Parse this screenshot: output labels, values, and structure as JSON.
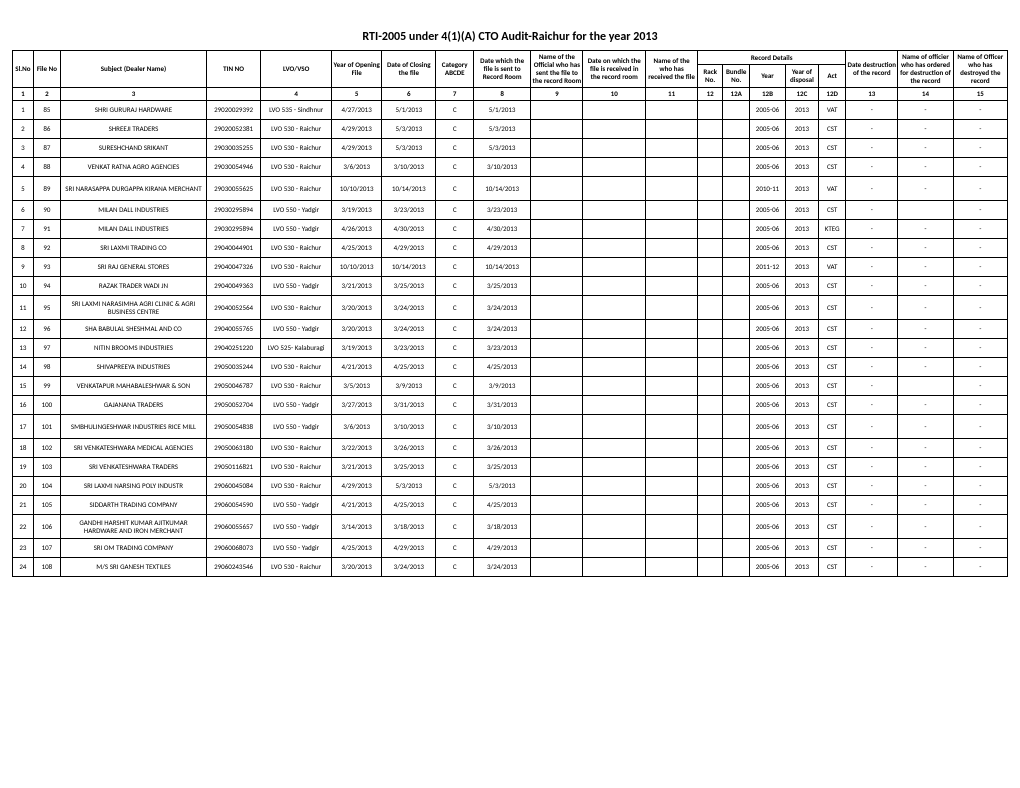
{
  "title": "RTI-2005 under 4(1)(A) CTO Audit-Raichur for the year 2013",
  "record_details_label": "Record Details",
  "headers": {
    "slno": "Sl.No",
    "fileno": "File No",
    "dealer": "Subject (Dealer Name)",
    "tin": "TIN NO",
    "lvo": "LVO/VSO",
    "year_open": "Year of Opening File",
    "close": "Date of Closing the file",
    "category": "Category ABCDE",
    "sent": "Date which the file is sent to Record Room",
    "official": "Name of the Official who has sent the file to the record Room",
    "received": "Date on which the file is received in the record room",
    "who_rec": "Name of the who has received the file",
    "rack": "Rack No.",
    "bundle": "Bundle No.",
    "year": "Year",
    "disposal": "Year of disposal",
    "act": "Act",
    "destr_date": "Date destruction of the record",
    "ordered": "Name of officier who has ordered for destruction of the record",
    "destroyed": "Name of Officer who has destroyed the record"
  },
  "col_numbers": [
    "1",
    "2",
    "3",
    "",
    "4",
    "5",
    "6",
    "7",
    "8",
    "9",
    "10",
    "11",
    "12",
    "12A",
    "12B",
    "12C",
    "12D",
    "13",
    "14",
    "15"
  ],
  "rows": [
    {
      "sl": "1",
      "file": "85",
      "dealer": "SHRI GURURAJ HARDWARE",
      "tin": "29020029392",
      "lvo": "LVO 535 - Sindhnur",
      "yopen": "4/27/2013",
      "close": "5/1/2013",
      "cat": "C",
      "sent": "5/1/2013",
      "year": "2005-06",
      "disp": "2013",
      "act": "VAT",
      "d": "-",
      "o": "-",
      "de": "-"
    },
    {
      "sl": "2",
      "file": "86",
      "dealer": "SHREEJI TRADERS",
      "tin": "29020052381",
      "lvo": "LVO 530 - Raichur",
      "yopen": "4/29/2013",
      "close": "5/3/2013",
      "cat": "C",
      "sent": "5/3/2013",
      "year": "2005-06",
      "disp": "2013",
      "act": "CST",
      "d": "-",
      "o": "-",
      "de": "-"
    },
    {
      "sl": "3",
      "file": "87",
      "dealer": "SURESHCHAND SRIKANT",
      "tin": "29030035255",
      "lvo": "LVO 530 - Raichur",
      "yopen": "4/29/2013",
      "close": "5/3/2013",
      "cat": "C",
      "sent": "5/3/2013",
      "year": "2005-06",
      "disp": "2013",
      "act": "CST",
      "d": "-",
      "o": "-",
      "de": "-"
    },
    {
      "sl": "4",
      "file": "88",
      "dealer": "VENKAT RATNA AGRO AGENCIES",
      "tin": "29030054946",
      "lvo": "LVO 530 - Raichur",
      "yopen": "3/6/2013",
      "close": "3/10/2013",
      "cat": "C",
      "sent": "3/10/2013",
      "year": "2005-06",
      "disp": "2013",
      "act": "CST",
      "d": "-",
      "o": "-",
      "de": "-"
    },
    {
      "sl": "5",
      "file": "89",
      "dealer": "SRI NARASAPPA DURGAPPA KIRANA MERCHANT",
      "tin": "29030055625",
      "lvo": "LVO 530 - Raichur",
      "yopen": "10/10/2013",
      "close": "10/14/2013",
      "cat": "C",
      "sent": "10/14/2013",
      "year": "2010-11",
      "disp": "2013",
      "act": "VAT",
      "d": "-",
      "o": "-",
      "de": "-",
      "tall": true
    },
    {
      "sl": "6",
      "file": "90",
      "dealer": "MILAN DALL INDUSTRIES",
      "tin": "29030295894",
      "lvo": "LVO 550 - Yadgir",
      "yopen": "3/19/2013",
      "close": "3/23/2013",
      "cat": "C",
      "sent": "3/23/2013",
      "year": "2005-06",
      "disp": "2013",
      "act": "CST",
      "d": "-",
      "o": "",
      "de": "-"
    },
    {
      "sl": "7",
      "file": "91",
      "dealer": "MILAN DALL INDUSTRIES",
      "tin": "29030295894",
      "lvo": "LVO 550 - Yadgir",
      "yopen": "4/26/2013",
      "close": "4/30/2013",
      "cat": "C",
      "sent": "4/30/2013",
      "year": "2005-06",
      "disp": "2013",
      "act": "KTEG",
      "d": "-",
      "o": "-",
      "de": "-"
    },
    {
      "sl": "8",
      "file": "92",
      "dealer": "SRI LAXMI TRADING CO",
      "tin": "29040044901",
      "lvo": "LVO 530 - Raichur",
      "yopen": "4/25/2013",
      "close": "4/29/2013",
      "cat": "C",
      "sent": "4/29/2013",
      "year": "2005-06",
      "disp": "2013",
      "act": "CST",
      "d": "-",
      "o": "-",
      "de": "-"
    },
    {
      "sl": "9",
      "file": "93",
      "dealer": "SRI RAJ GENERAL STORES",
      "tin": "29040047326",
      "lvo": "LVO 530 - Raichur",
      "yopen": "10/10/2013",
      "close": "10/14/2013",
      "cat": "C",
      "sent": "10/14/2013",
      "year": "2011-12",
      "disp": "2013",
      "act": "VAT",
      "d": "-",
      "o": "-",
      "de": "-"
    },
    {
      "sl": "10",
      "file": "94",
      "dealer": "RAZAK TRADER WADI JN",
      "tin": "29040049363",
      "lvo": "LVO 550 - Yadgir",
      "yopen": "3/21/2013",
      "close": "3/25/2013",
      "cat": "C",
      "sent": "3/25/2013",
      "year": "2005-06",
      "disp": "2013",
      "act": "CST",
      "d": "-",
      "o": "-",
      "de": "-"
    },
    {
      "sl": "11",
      "file": "95",
      "dealer": "SRI LAXMI NARASIMHA AGRI CLINIC & AGRI BUSINESS CENTRE",
      "tin": "29040052564",
      "lvo": "LVO 530 - Raichur",
      "yopen": "3/20/2013",
      "close": "3/24/2013",
      "cat": "C",
      "sent": "3/24/2013",
      "year": "2005-06",
      "disp": "2013",
      "act": "CST",
      "d": "-",
      "o": "-",
      "de": "-",
      "tall": true
    },
    {
      "sl": "12",
      "file": "96",
      "dealer": "SHA BABULAL SHESHMAL AND CO",
      "tin": "29040055765",
      "lvo": "LVO 550 - Yadgir",
      "yopen": "3/20/2013",
      "close": "3/24/2013",
      "cat": "C",
      "sent": "3/24/2013",
      "year": "2005-06",
      "disp": "2013",
      "act": "CST",
      "d": "-",
      "o": "-",
      "de": "-"
    },
    {
      "sl": "13",
      "file": "97",
      "dealer": "NITIN BROOMS INDUSTRIES",
      "tin": "29040251220",
      "lvo": "LVO 525- Kalaburagi",
      "yopen": "3/19/2013",
      "close": "3/23/2013",
      "cat": "C",
      "sent": "3/23/2013",
      "year": "2005-06",
      "disp": "2013",
      "act": "CST",
      "d": "-",
      "o": "-",
      "de": "-"
    },
    {
      "sl": "14",
      "file": "98",
      "dealer": "SHIVAPREEYA INDUSTRIES",
      "tin": "29050035244",
      "lvo": "LVO 530 - Raichur",
      "yopen": "4/21/2013",
      "close": "4/25/2013",
      "cat": "C",
      "sent": "4/25/2013",
      "year": "2005-06",
      "disp": "2013",
      "act": "CST",
      "d": "-",
      "o": "-",
      "de": "-"
    },
    {
      "sl": "15",
      "file": "99",
      "dealer": "VENKATAPUR MAHABALESHWAR & SON",
      "tin": "29050046787",
      "lvo": "LVO 530 - Raichur",
      "yopen": "3/5/2013",
      "close": "3/9/2013",
      "cat": "C",
      "sent": "3/9/2013",
      "year": "2005-06",
      "disp": "2013",
      "act": "CST",
      "d": "-",
      "o": "",
      "de": "-"
    },
    {
      "sl": "16",
      "file": "100",
      "dealer": "GAJANANA TRADERS",
      "tin": "29050052704",
      "lvo": "LVO 550 - Yadgir",
      "yopen": "3/27/2013",
      "close": "3/31/2013",
      "cat": "C",
      "sent": "3/31/2013",
      "year": "2005-06",
      "disp": "2013",
      "act": "CST",
      "d": "-",
      "o": "-",
      "de": "-"
    },
    {
      "sl": "17",
      "file": "101",
      "dealer": "SMBHULINGESHWAR INDUSTRIES RICE MILL",
      "tin": "29050054838",
      "lvo": "LVO 550 - Yadgir",
      "yopen": "3/6/2013",
      "close": "3/10/2013",
      "cat": "C",
      "sent": "3/10/2013",
      "year": "2005-06",
      "disp": "2013",
      "act": "CST",
      "d": "-",
      "o": "-",
      "de": "-",
      "tall": true
    },
    {
      "sl": "18",
      "file": "102",
      "dealer": "SRI VENKATESHWARA MEDICAL AGENCIES",
      "tin": "29050063180",
      "lvo": "LVO 530 - Raichur",
      "yopen": "3/22/2013",
      "close": "3/26/2013",
      "cat": "C",
      "sent": "3/26/2013",
      "year": "2005-06",
      "disp": "2013",
      "act": "CST",
      "d": "-",
      "o": "-",
      "de": "-"
    },
    {
      "sl": "19",
      "file": "103",
      "dealer": "SRI VENKATESHWARA TRADERS",
      "tin": "29050116821",
      "lvo": "LVO 530 - Raichur",
      "yopen": "3/21/2013",
      "close": "3/25/2013",
      "cat": "C",
      "sent": "3/25/2013",
      "year": "2005-06",
      "disp": "2013",
      "act": "CST",
      "d": "-",
      "o": "-",
      "de": "-"
    },
    {
      "sl": "20",
      "file": "104",
      "dealer": "SRI LAXMI NARSING POLY INDUSTR",
      "tin": "29060045084",
      "lvo": "LVO 530 - Raichur",
      "yopen": "4/29/2013",
      "close": "5/3/2013",
      "cat": "C",
      "sent": "5/3/2013",
      "year": "2005-06",
      "disp": "2013",
      "act": "CST",
      "d": "-",
      "o": "-",
      "de": "-"
    },
    {
      "sl": "21",
      "file": "105",
      "dealer": "SIDDARTH TRADING COMPANY",
      "tin": "29060054590",
      "lvo": "LVO 550 - Yadgir",
      "yopen": "4/21/2013",
      "close": "4/25/2013",
      "cat": "C",
      "sent": "4/25/2013",
      "year": "2005-06",
      "disp": "2013",
      "act": "CST",
      "d": "-",
      "o": "-",
      "de": "-"
    },
    {
      "sl": "22",
      "file": "106",
      "dealer": "GANDHI HARSHIT KUMAR AJITKUMAR HARDWARE AND IRON MERCHANT",
      "tin": "29060055657",
      "lvo": "LVO 550 - Yadgir",
      "yopen": "3/14/2013",
      "close": "3/18/2013",
      "cat": "C",
      "sent": "3/18/2013",
      "year": "2005-06",
      "disp": "2013",
      "act": "CST",
      "d": "-",
      "o": "-",
      "de": "-",
      "tall": true
    },
    {
      "sl": "23",
      "file": "107",
      "dealer": "SRI OM TRADING COMPANY",
      "tin": "29060068073",
      "lvo": "LVO 550 - Yadgir",
      "yopen": "4/25/2013",
      "close": "4/29/2013",
      "cat": "C",
      "sent": "4/29/2013",
      "year": "2005-06",
      "disp": "2013",
      "act": "CST",
      "d": "-",
      "o": "-",
      "de": "-"
    },
    {
      "sl": "24",
      "file": "108",
      "dealer": "M/S SRI GANESH TEXTILES",
      "tin": "29060243546",
      "lvo": "LVO 530 - Raichur",
      "yopen": "3/20/2013",
      "close": "3/24/2013",
      "cat": "C",
      "sent": "3/24/2013",
      "year": "2005-06",
      "disp": "2013",
      "act": "CST",
      "d": "-",
      "o": "-",
      "de": "-"
    }
  ]
}
